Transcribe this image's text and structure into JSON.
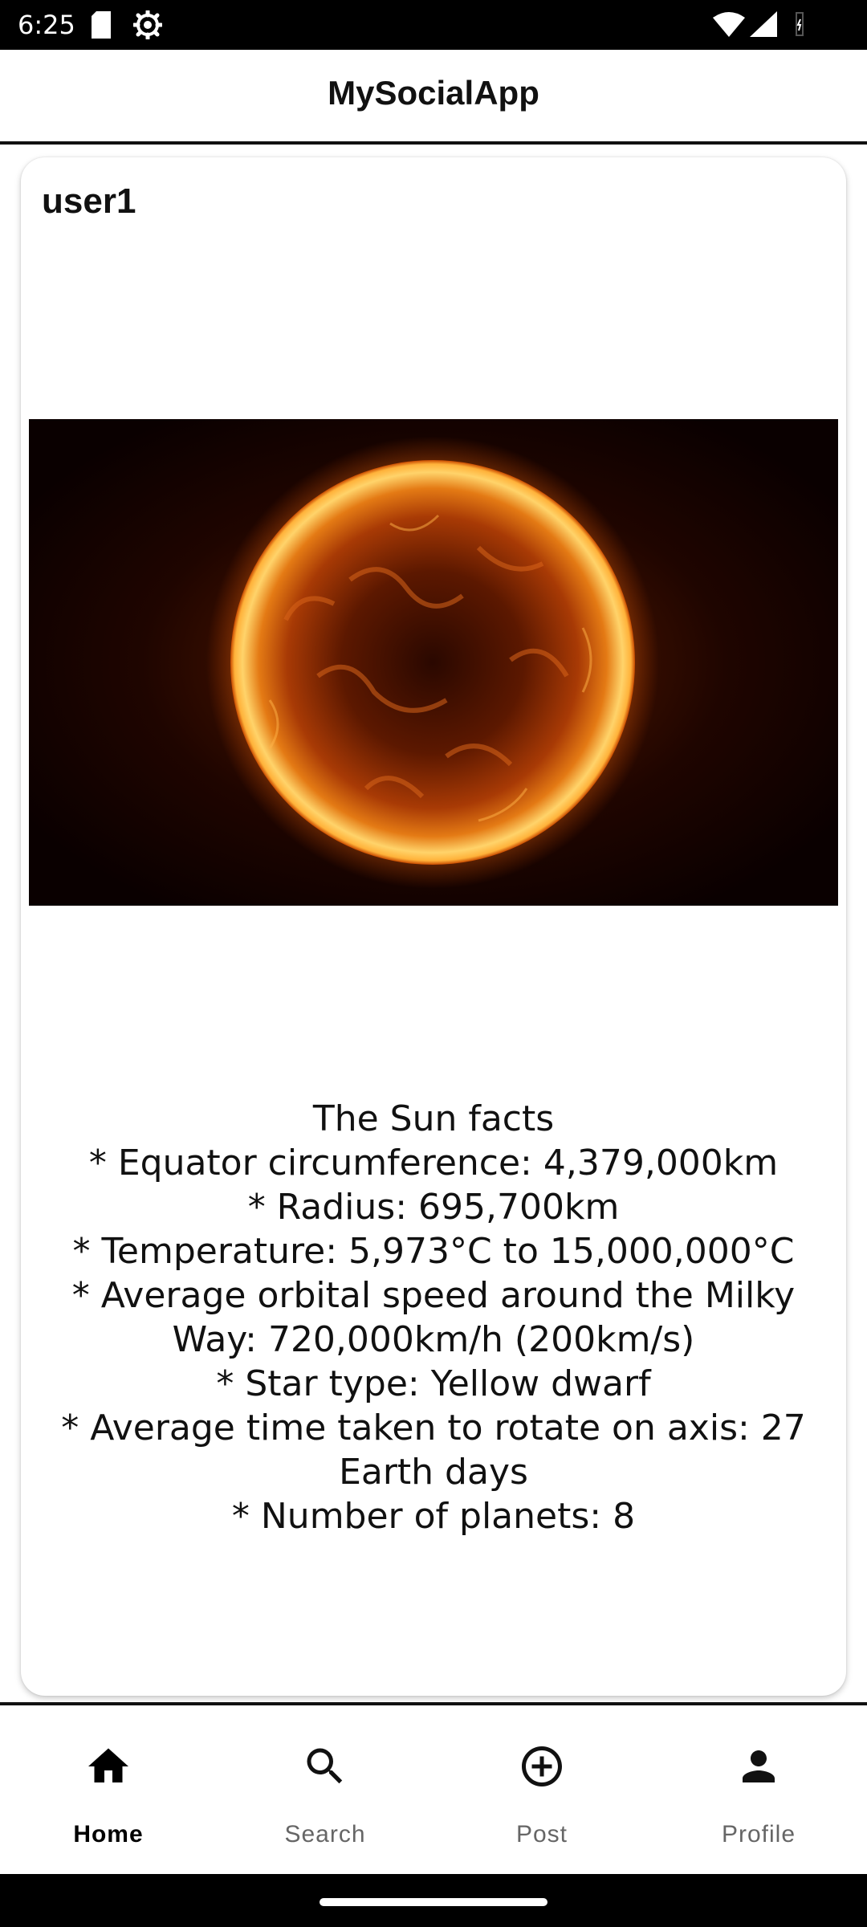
{
  "status_bar": {
    "time": "6:25",
    "icons": [
      "sd-card-icon",
      "settings-gear-icon",
      "wifi-icon",
      "cell-signal-icon",
      "battery-icon"
    ]
  },
  "app_bar": {
    "title": "MySocialApp"
  },
  "post": {
    "username": "user1",
    "image_icon": "sun-image",
    "text_lines": [
      "The Sun facts",
      "* Equator circumference: 4,379,000km",
      "* Radius: 695,700km",
      "* Temperature: 5,973°C to 15,000,000°C",
      "* Average orbital speed around the Milky",
      "Way: 720,000km/h (200km/s)",
      "* Star type: Yellow dwarf",
      "* Average time taken to rotate on axis: 27",
      "Earth days",
      "* Number of planets: 8"
    ]
  },
  "bottom_nav": {
    "items": [
      {
        "label": "Home",
        "icon": "home-icon",
        "active": true
      },
      {
        "label": "Search",
        "icon": "search-icon",
        "active": false
      },
      {
        "label": "Post",
        "icon": "add-circle-icon",
        "active": false
      },
      {
        "label": "Profile",
        "icon": "person-icon",
        "active": false
      }
    ]
  },
  "colors": {
    "active_nav": "#000000",
    "inactive_nav": "#666666",
    "status_bar_bg": "#000000"
  }
}
